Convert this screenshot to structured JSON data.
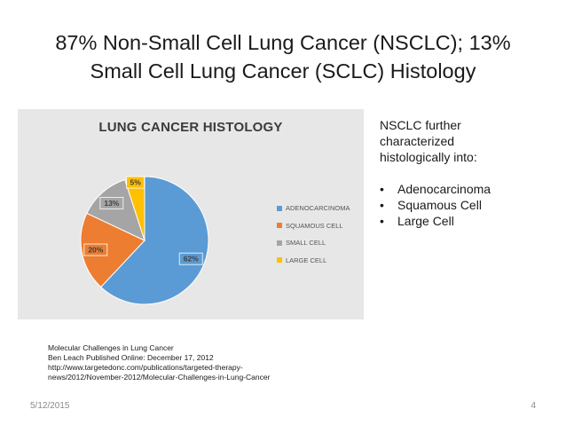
{
  "slide": {
    "title_line1": "87% Non-Small Cell Lung Cancer (NSCLC); 13%",
    "title_line2": "Small Cell Lung Cancer (SCLC) Histology",
    "note": {
      "intro": "NSCLC further\ncharacterized\nhistologically into:",
      "bullets": [
        "Adenocarcinoma",
        "Squamous Cell",
        "Large Cell"
      ]
    },
    "source": {
      "line1": "Molecular Challenges in Lung Cancer",
      "line2": "Ben Leach Published Online: December 17, 2012",
      "line3": "http://www.targetedonc.com/publications/targeted-therapy-",
      "line4": "news/2012/November-2012/Molecular-Challenges-in-Lung-Cancer"
    },
    "footer": {
      "date": "5/12/2015",
      "page": "4"
    }
  },
  "chart_data": {
    "type": "pie",
    "title": "LUNG CANCER HISTOLOGY",
    "categories": [
      "ADENOCARCINOMA",
      "SQUAMOUS CELL",
      "SMALL CELL",
      "LARGE CELL"
    ],
    "values": [
      62,
      20,
      13,
      5
    ],
    "labels": [
      "62%",
      "20%",
      "13%",
      "5%"
    ],
    "colors": [
      "#5b9bd5",
      "#ed7d31",
      "#a5a5a5",
      "#ffc000"
    ],
    "legend_position": "right",
    "background": "#e7e7e7"
  }
}
